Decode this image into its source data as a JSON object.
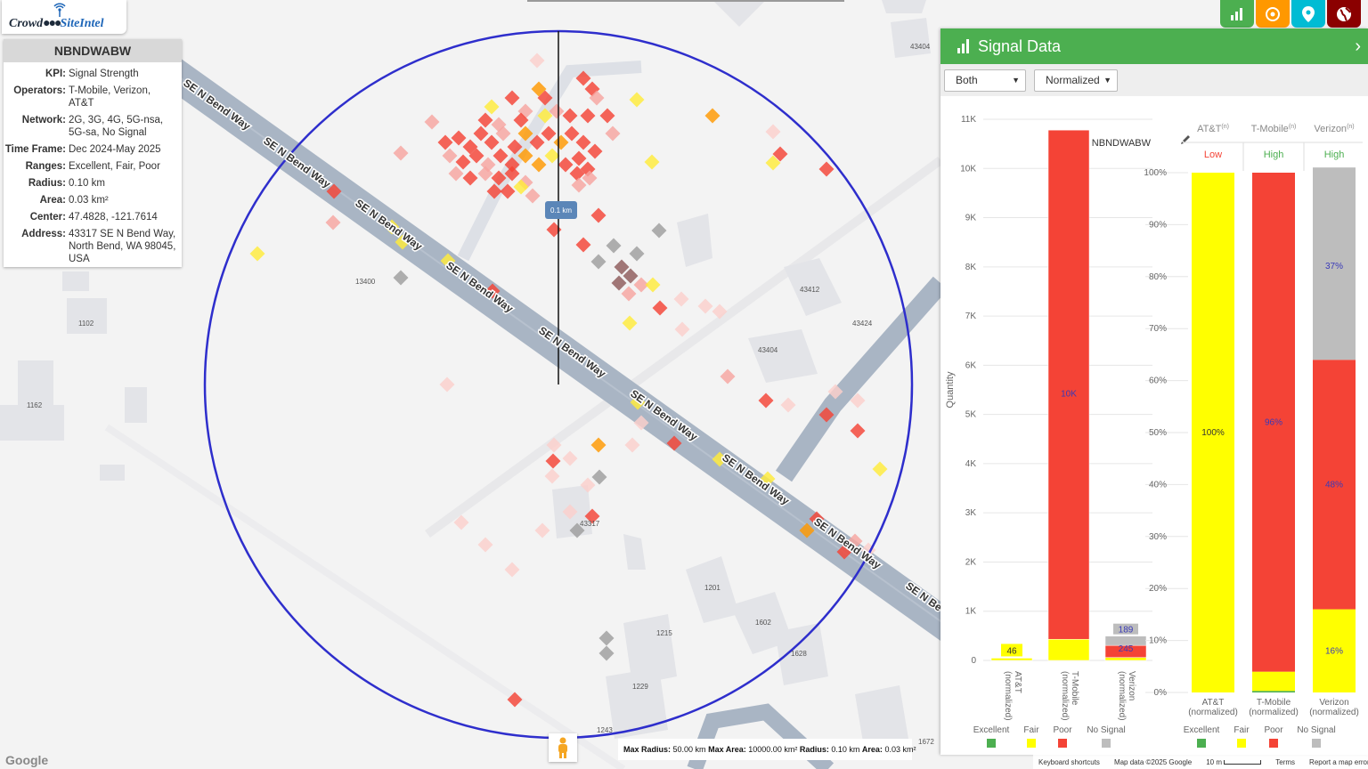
{
  "app": {
    "logo_part1": "Crowd",
    "logo_part2": "SiteIntel"
  },
  "info_panel": {
    "title": "NBNDWABW",
    "rows": [
      {
        "key": "KPI:",
        "value": "Signal Strength"
      },
      {
        "key": "Operators:",
        "value": "T-Mobile, Verizon, AT&T"
      },
      {
        "key": "Network:",
        "value": "2G, 3G, 4G, 5G-nsa, 5G-sa, No Signal"
      },
      {
        "key": "Time Frame:",
        "value": "Dec 2024-May 2025"
      },
      {
        "key": "Ranges:",
        "value": "Excellent, Fair, Poor"
      },
      {
        "key": "Radius:",
        "value": "0.10 km"
      },
      {
        "key": "Area:",
        "value": "0.03 km²"
      },
      {
        "key": "Center:",
        "value": "47.4828, -121.7614"
      },
      {
        "key": "Address:",
        "value": "43317 SE N Bend Way, North Bend, WA 98045, USA"
      }
    ]
  },
  "top_buttons": [
    {
      "icon": "bar-chart-icon",
      "color": "#4caf50"
    },
    {
      "icon": "target-icon",
      "color": "#ff9800"
    },
    {
      "icon": "map-pin-icon",
      "color": "#00bcd4"
    },
    {
      "icon": "globe-icon",
      "color": "#8b0000"
    }
  ],
  "map": {
    "road_labels": [
      "SE N Bend Way",
      "SE N Be"
    ],
    "parcel_labels": [
      "43404",
      "13400",
      "1102",
      "1162",
      "43412",
      "43424",
      "43404",
      "43317",
      "1201",
      "1602",
      "1215",
      "1628",
      "1229",
      "1243",
      "1672"
    ],
    "radius_label": "0.1 km",
    "bottom_info": {
      "max_radius_label": "Max Radius:",
      "max_radius": "50.00 km",
      "max_area_label": "Max Area:",
      "max_area": "10000.00 km²",
      "radius_label": "Radius:",
      "radius": "0.10 km",
      "area_label": "Area:",
      "area": "0.03 km²"
    },
    "attribution": [
      "Keyboard shortcuts",
      "Map data ©2025 Google",
      "10 m",
      "Terms",
      "Report a map error"
    ],
    "google_logo": "Google"
  },
  "signal_panel": {
    "title": "Signal Data",
    "dropdown_1": "Both",
    "dropdown_2": "Normalized",
    "chart_title": "NBNDWABW",
    "legend": [
      "Excellent",
      "Fair",
      "Poor",
      "No Signal"
    ],
    "colors": {
      "excellent": "#4caf50",
      "fair": "#ffff00",
      "poor": "#f44336",
      "nosignal": "#bdbdbd"
    },
    "table_headers": [
      "AT&T",
      "T-Mobile",
      "Verizon"
    ],
    "header_sup": "(n)",
    "table_status": [
      {
        "label": "Low",
        "color": "#f44336"
      },
      {
        "label": "High",
        "color": "#4caf50"
      },
      {
        "label": "High",
        "color": "#4caf50"
      }
    ]
  },
  "chart_data": [
    {
      "type": "bar",
      "stacked": true,
      "title": "NBNDWABW",
      "ylabel": "Quantity",
      "ylim": [
        0,
        11000
      ],
      "yticks": [
        "0",
        "1K",
        "2K",
        "3K",
        "4K",
        "5K",
        "6K",
        "7K",
        "8K",
        "9K",
        "10K",
        "11K"
      ],
      "categories": [
        "AT&T (normalized)",
        "T-Mobile (normalized)",
        "Verizon (normalized)"
      ],
      "series": [
        {
          "name": "Excellent",
          "values": [
            0,
            0,
            0
          ]
        },
        {
          "name": "Fair",
          "values": [
            46,
            430,
            60
          ]
        },
        {
          "name": "Poor",
          "values": [
            0,
            10350,
            245
          ]
        },
        {
          "name": "No Signal",
          "values": [
            0,
            0,
            189
          ]
        }
      ],
      "data_labels": [
        "46",
        "10K",
        "245",
        "189"
      ],
      "grid": true
    },
    {
      "type": "bar",
      "stacked": true,
      "ylim": [
        0,
        100
      ],
      "yticks": [
        "0%",
        "10%",
        "20%",
        "30%",
        "40%",
        "50%",
        "60%",
        "70%",
        "80%",
        "90%",
        "100%"
      ],
      "categories": [
        "AT&T (normalized)",
        "T-Mobile (normalized)",
        "Verizon (normalized)"
      ],
      "series": [
        {
          "name": "Excellent",
          "values": [
            0,
            0.3,
            0
          ]
        },
        {
          "name": "Fair",
          "values": [
            100,
            3.7,
            16
          ]
        },
        {
          "name": "Poor",
          "values": [
            0,
            96,
            48
          ]
        },
        {
          "name": "No Signal",
          "values": [
            0,
            0,
            37
          ]
        }
      ],
      "data_labels": [
        {
          "bar": 0,
          "text": "100%",
          "at": 50
        },
        {
          "bar": 1,
          "text": "96%",
          "at": 52
        },
        {
          "bar": 2,
          "text": "16%",
          "at": 8
        },
        {
          "bar": 2,
          "text": "48%",
          "at": 40
        },
        {
          "bar": 2,
          "text": "37%",
          "at": 82
        }
      ]
    }
  ]
}
